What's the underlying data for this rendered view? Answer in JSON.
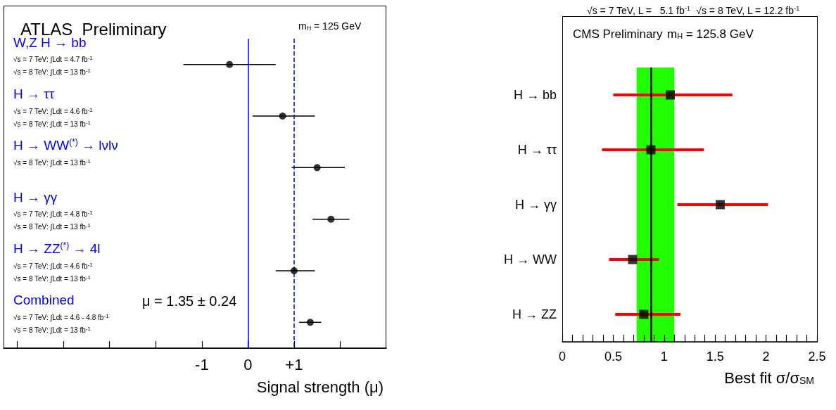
{
  "chart_data": [
    {
      "type": "scatter",
      "orientation": "horizontal",
      "title": "ATLAS  Preliminary",
      "xlabel": "Signal strength (μ)",
      "categories": [
        "W,Z H → bb",
        "H → ττ",
        "H → WW$^{(*)}$ → lνlν",
        "H → γγ",
        "H → ZZ$^{(*)}$ → 4l",
        "Combined"
      ],
      "values": [
        -0.4,
        0.75,
        1.5,
        1.8,
        1.0,
        1.35
      ],
      "errors": [
        [
          -1.4,
          0.6
        ],
        [
          0.1,
          1.45
        ],
        [
          0.95,
          2.1
        ],
        [
          1.4,
          2.2
        ],
        [
          0.6,
          1.45
        ],
        [
          1.11,
          1.59
        ]
      ],
      "color": "#000000",
      "marker": "circle",
      "xlim": [
        -5.3,
        3
      ],
      "xticks": [
        {
          "value": -5,
          "label": null
        },
        {
          "value": -4,
          "label": null
        },
        {
          "value": -3,
          "label": null
        },
        {
          "value": -2,
          "label": null
        },
        {
          "value": -1,
          "label": "-1"
        },
        0,
        {
          "value": 1,
          "label": "+1"
        },
        {
          "value": 2,
          "label": null
        }
      ],
      "ref_lines": [
        {
          "axis": "x",
          "value": 0,
          "color": "#0000ff",
          "line_style": "solid"
        },
        {
          "axis": "x",
          "value": 1,
          "color": "#0000ff",
          "line_style": "dashed"
        }
      ],
      "annotations": [
        "√s = 7 TeV: ∫Ldt = 4.7 fb$^{-1}$",
        "√s = 8 TeV: ∫Ldt = 13 fb$^{-1}$",
        "√s = 7 TeV: ∫Ldt = 4.6 fb$^{-1}$",
        "√s = 8 TeV: ∫Ldt = 13 fb$^{-1}$",
        "√s = 8 TeV: ∫Ldt = 13 fb$^{-1}$",
        "√s = 7 TeV: ∫Ldt = 4.8 fb$^{-1}$",
        "√s = 8 TeV: ∫Ldt = 13 fb$^{-1}$",
        "√s = 7 TeV: ∫Ldt = 4.6 fb$^{-1}$",
        "√s = 8 TeV: ∫Ldt = 13 fb$^{-1}$",
        "√s = 7 TeV: ∫Ldt = 4.6 - 4.8 fb$^{-1}$",
        "√s = 8 TeV: ∫Ldt = 13 fb$^{-1}$",
        "m$_{H}$ = 125 GeV",
        "μ = 1.35 ± 0.24"
      ]
    },
    {
      "type": "scatter",
      "orientation": "horizontal",
      "title": "√s = 7 TeV, L =   5.1 fb$^{-1}$  √s = 8 TeV, L = 12.2 fb$^{-1}$",
      "xlabel": "Best fit σ/σ$_{SM}$",
      "categories": [
        "H → bb",
        "H → ττ",
        "H → γγ",
        "H → WW",
        "H → ZZ"
      ],
      "values": [
        1.06,
        0.87,
        1.55,
        0.69,
        0.8
      ],
      "errors": [
        [
          0.5,
          1.67
        ],
        [
          0.39,
          1.39
        ],
        [
          1.13,
          2.02
        ],
        [
          0.46,
          0.95
        ],
        [
          0.52,
          1.16
        ]
      ],
      "color": "#000000",
      "marker": "square",
      "xlim": [
        0,
        2.5
      ],
      "xticks": [
        0,
        {
          "value": 0.1,
          "label": null
        },
        {
          "value": 0.2,
          "label": null
        },
        {
          "value": 0.3,
          "label": null
        },
        {
          "value": 0.4,
          "label": null
        },
        0.5,
        {
          "value": 0.6,
          "label": null
        },
        {
          "value": 0.7,
          "label": null
        },
        {
          "value": 0.8,
          "label": null
        },
        {
          "value": 0.9,
          "label": null
        },
        1,
        {
          "value": 1.1,
          "label": null
        },
        {
          "value": 1.2,
          "label": null
        },
        {
          "value": 1.3,
          "label": null
        },
        {
          "value": 1.4,
          "label": null
        },
        1.5,
        {
          "value": 1.6,
          "label": null
        },
        {
          "value": 1.7,
          "label": null
        },
        {
          "value": 1.8,
          "label": null
        },
        {
          "value": 1.9,
          "label": null
        },
        2,
        {
          "value": 2.1,
          "label": null
        },
        {
          "value": 2.2,
          "label": null
        },
        {
          "value": 2.3,
          "label": null
        },
        {
          "value": 2.4,
          "label": null
        },
        2.5
      ],
      "ref_lines": [
        {
          "axis": "x",
          "value": 0.87,
          "color": "#000000",
          "line_style": "solid"
        }
      ],
      "bands": [
        {
          "axis": "x",
          "from": 0.73,
          "to": 1.1,
          "color": "#22ff00"
        }
      ],
      "annotations": [
        "CMS Preliminary",
        "m$_{H}$ = 125.8 GeV"
      ]
    }
  ]
}
